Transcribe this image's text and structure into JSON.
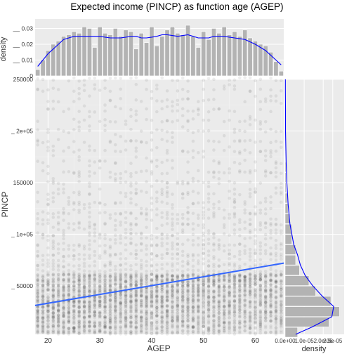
{
  "title": "Expected income (PINCP) as function age (AGEP)",
  "chart_data": [
    {
      "type": "scatter",
      "panel": "main",
      "xlabel": "AGEP",
      "ylabel": "PINCP",
      "xlim": [
        17.5,
        65.5
      ],
      "ylim": [
        3000,
        250000
      ],
      "x_ticks": [
        20,
        30,
        40,
        50,
        60
      ],
      "y_ticks": [
        {
          "value": 50000,
          "label": "_ 50000"
        },
        {
          "value": 100000,
          "label": "_ 1e+05"
        },
        {
          "value": 150000,
          "label": "150000"
        },
        {
          "value": 200000,
          "label": "_ 2e+05"
        },
        {
          "value": 250000,
          "label": "250000"
        }
      ],
      "points": "dense semi-transparent dots at every integer age 18-65; most incomes below 60000, thinning upward to 250000",
      "trend_line": {
        "color": "#3366ff",
        "x": [
          17.5,
          65.5
        ],
        "y": [
          31000,
          72000
        ]
      },
      "grid": true
    },
    {
      "type": "bar",
      "panel": "top-marginal",
      "ylabel": "density",
      "x": [
        18,
        19,
        20,
        21,
        22,
        23,
        24,
        25,
        26,
        27,
        28,
        29,
        30,
        31,
        32,
        33,
        34,
        35,
        36,
        37,
        38,
        39,
        40,
        41,
        42,
        43,
        44,
        45,
        46,
        47,
        48,
        49,
        50,
        51,
        52,
        53,
        54,
        55,
        56,
        57,
        58,
        59,
        60,
        61,
        62,
        63,
        64,
        65
      ],
      "values": [
        0.004,
        0.01,
        0.016,
        0.02,
        0.022,
        0.025,
        0.026,
        0.028,
        0.027,
        0.031,
        0.03,
        0.018,
        0.031,
        0.027,
        0.026,
        0.03,
        0.025,
        0.029,
        0.028,
        0.017,
        0.027,
        0.021,
        0.031,
        0.019,
        0.025,
        0.029,
        0.031,
        0.027,
        0.026,
        0.032,
        0.025,
        0.018,
        0.028,
        0.023,
        0.03,
        0.027,
        0.031,
        0.026,
        0.028,
        0.025,
        0.029,
        0.024,
        0.022,
        0.02,
        0.019,
        0.015,
        0.009,
        0.003
      ],
      "density_curve": {
        "color": "#0000ff",
        "y": [
          0.006,
          0.01,
          0.014,
          0.017,
          0.02,
          0.023,
          0.024,
          0.025,
          0.025,
          0.025,
          0.025,
          0.025,
          0.025,
          0.0245,
          0.024,
          0.024,
          0.024,
          0.0245,
          0.025,
          0.025,
          0.024,
          0.024,
          0.0245,
          0.025,
          0.026,
          0.026,
          0.0255,
          0.025,
          0.0255,
          0.026,
          0.025,
          0.024,
          0.024,
          0.024,
          0.025,
          0.025,
          0.025,
          0.0245,
          0.024,
          0.0235,
          0.023,
          0.0215,
          0.02,
          0.018,
          0.016,
          0.013,
          0.01,
          0.007
        ]
      },
      "y_ticks": [
        {
          "value": 0,
          "label": "0"
        },
        {
          "value": 0.01,
          "label": "__ 0.01"
        },
        {
          "value": 0.02,
          "label": "__ 0.02"
        },
        {
          "value": 0.03,
          "label": "__ 0.03"
        }
      ],
      "ylim": [
        0,
        0.036
      ]
    },
    {
      "type": "bar",
      "panel": "right-marginal",
      "orientation": "horizontal",
      "xlabel": "density",
      "bin_centers": [
        5000,
        15000,
        25000,
        35000,
        45000,
        55000,
        65000,
        75000,
        85000,
        95000,
        105000,
        115000,
        125000,
        135000,
        145000,
        155000,
        165000,
        175000,
        185000,
        195000,
        205000,
        215000,
        225000,
        235000,
        245000
      ],
      "values": [
        6.5e-06,
        2.3e-05,
        2.85e-05,
        2.4e-05,
        1.6e-05,
        1.25e-05,
        7.5e-06,
        5.5e-06,
        5.5e-06,
        3.5e-06,
        3.5e-06,
        2.5e-06,
        1.5e-06,
        1e-06,
        5e-07,
        5e-07,
        5e-07,
        2e-07,
        2e-07,
        2e-07,
        1e-07,
        1e-07,
        1e-07,
        1e-07,
        1e-07
      ],
      "density_curve": {
        "color": "#0000ff",
        "y": [
          3000,
          10000,
          20000,
          30000,
          40000,
          50000,
          60000,
          70000,
          80000,
          90000,
          100000,
          110000,
          120000,
          130000,
          140000,
          150000,
          160000,
          170000,
          180000,
          190000,
          200000,
          220000,
          240000,
          250000
        ],
        "x": [
          5.5e-06,
          1.4e-05,
          2.45e-05,
          2.55e-05,
          1.95e-05,
          1.45e-05,
          1.05e-05,
          8e-06,
          6.5e-06,
          4.5e-06,
          3.5e-06,
          2.5e-06,
          2e-06,
          1.5e-06,
          1.2e-06,
          9e-07,
          7e-07,
          5e-07,
          4e-07,
          3e-07,
          2e-07,
          2e-07,
          1e-07,
          1e-07
        ]
      },
      "x_tick_labels": [
        "0.0e+00",
        "1.0e-05",
        "2.0e-05",
        "2.5e-05"
      ],
      "x_ticks": [
        0,
        1e-05,
        2e-05,
        2.5e-05
      ],
      "xlim": [
        0,
        3.1e-05
      ]
    }
  ]
}
